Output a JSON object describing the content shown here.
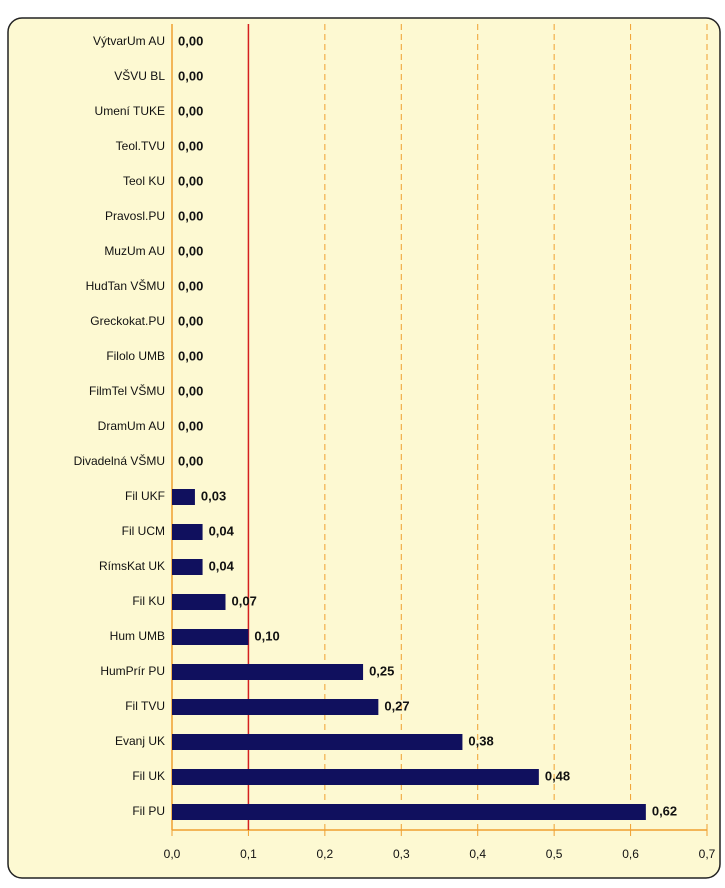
{
  "chart_data": {
    "type": "barh",
    "categories": [
      "VýtvarUm AU",
      "VŠVU BL",
      "Umení TUKE",
      "Teol.TVU",
      "Teol KU",
      "Pravosl.PU",
      "MuzUm AU",
      "HudTan VŠMU",
      "Greckokat.PU",
      "Filolo UMB",
      "FilmTel VŠMU",
      "DramUm AU",
      "Divadelná VŠMU",
      "Fil UKF",
      "Fil UCM",
      "RímsKat UK",
      "Fil KU",
      "Hum UMB",
      "HumPrír PU",
      "Fil TVU",
      "Evanj UK",
      "Fil UK",
      "Fil PU"
    ],
    "values": [
      0,
      0,
      0,
      0,
      0,
      0,
      0,
      0,
      0,
      0,
      0,
      0,
      0,
      0.03,
      0.04,
      0.04,
      0.07,
      0.1,
      0.25,
      0.27,
      0.38,
      0.48,
      0.62
    ],
    "value_labels": [
      "0,00",
      "0,00",
      "0,00",
      "0,00",
      "0,00",
      "0,00",
      "0,00",
      "0,00",
      "0,00",
      "0,00",
      "0,00",
      "0,00",
      "0,00",
      "0,03",
      "0,04",
      "0,04",
      "0,07",
      "0,10",
      "0,25",
      "0,27",
      "0,38",
      "0,48",
      "0,62"
    ],
    "color": "#10105e",
    "xlim": [
      0,
      0.7
    ],
    "xticks": [
      {
        "value": 0,
        "label": "0,0"
      },
      {
        "value": 0.1,
        "label": "0,1"
      },
      {
        "value": 0.2,
        "label": "0,2"
      },
      {
        "value": 0.3,
        "label": "0,3"
      },
      {
        "value": 0.4,
        "label": "0,4"
      },
      {
        "value": 0.5,
        "label": "0,5"
      },
      {
        "value": 0.6,
        "label": "0,6"
      },
      {
        "value": 0.7,
        "label": "0,7"
      }
    ],
    "grid": true,
    "grid_color": "#f0a030",
    "reference_line": 0.1,
    "reference_color": "#d42020"
  }
}
